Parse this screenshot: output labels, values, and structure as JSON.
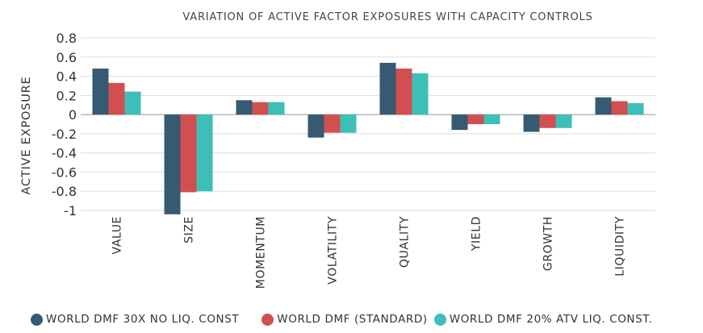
{
  "chart_data": {
    "type": "bar",
    "title": "VARIATION OF ACTIVE FACTOR EXPOSURES WITH CAPACITY CONTROLS",
    "xlabel": "",
    "ylabel": "ACTIVE EXPOSURE",
    "ylim": [
      -1,
      0.8
    ],
    "yticks": [
      0.8,
      0.6,
      0.4,
      0.2,
      0,
      -0.2,
      -0.4,
      -0.6,
      -0.8,
      -1
    ],
    "ytick_labels": [
      "0.8",
      "0.6",
      "0.4",
      "0.2",
      "0",
      "-0.2",
      "-0.4",
      "-0.6",
      "-0.8",
      "-1"
    ],
    "grid": true,
    "legend_position": "bottom",
    "categories": [
      "VALUE",
      "SIZE",
      "MOMENTUM",
      "VOLATILITY",
      "QUALITY",
      "YIELD",
      "GROWTH",
      "LIQUIDITY"
    ],
    "series": [
      {
        "name": "WORLD DMF 30X NO LIQ. CONST",
        "color": "#365a72",
        "values": [
          0.48,
          -1.04,
          0.15,
          -0.24,
          0.54,
          -0.16,
          -0.18,
          0.18
        ]
      },
      {
        "name": "WORLD DMF (STANDARD)",
        "color": "#d24f51",
        "values": [
          0.33,
          -0.81,
          0.13,
          -0.19,
          0.48,
          -0.1,
          -0.14,
          0.14
        ]
      },
      {
        "name": "WORLD DMF 20% ATV LIQ. CONST.",
        "color": "#3dbfb8",
        "values": [
          0.24,
          -0.8,
          0.13,
          -0.19,
          0.43,
          -0.1,
          -0.14,
          0.12
        ]
      }
    ]
  }
}
